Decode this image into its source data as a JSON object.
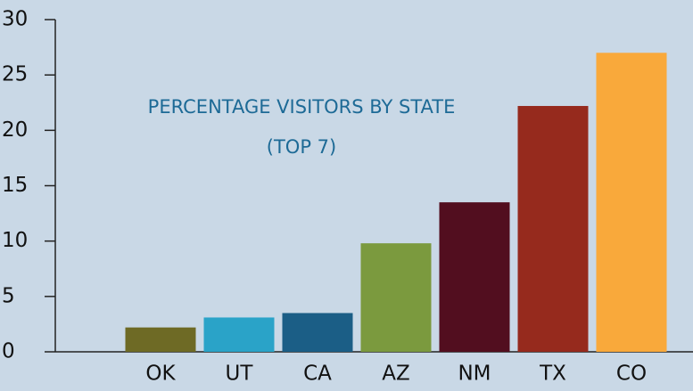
{
  "chart_data": {
    "type": "bar",
    "title": "PERCENTAGE VISITORS BY STATE (TOP 7)",
    "categories": [
      "OK",
      "UT",
      "CA",
      "AZ",
      "NM",
      "TX",
      "CO"
    ],
    "values": [
      2.2,
      3.1,
      3.5,
      9.8,
      13.5,
      22.2,
      27.0
    ],
    "colors": [
      "#6e6a25",
      "#2aa3c8",
      "#1b5e86",
      "#7b9a3e",
      "#520e1f",
      "#962a1d",
      "#f9a93b"
    ],
    "ylim": [
      0,
      30
    ],
    "yticks": [
      0,
      5,
      10,
      15,
      20,
      25,
      30
    ]
  }
}
